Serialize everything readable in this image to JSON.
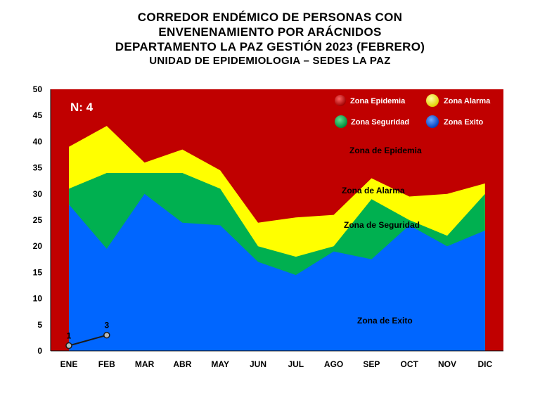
{
  "title_lines": [
    "CORREDOR ENDÉMICO DE PERSONAS CON",
    "ENVENENAMIENTO POR ARÁCNIDOS",
    "DEPARTAMENTO LA PAZ GESTIÓN 2023 (FEBRERO)",
    "UNIDAD DE EPIDEMIOLOGIA – SEDES LA PAZ"
  ],
  "chart_data": {
    "type": "area",
    "categories": [
      "ENE",
      "FEB",
      "MAR",
      "ABR",
      "MAY",
      "JUN",
      "JUL",
      "AGO",
      "SEP",
      "OCT",
      "NOV",
      "DIC"
    ],
    "ylim": [
      0,
      50
    ],
    "yticks": [
      0,
      5,
      10,
      15,
      20,
      25,
      30,
      35,
      40,
      45,
      50
    ],
    "series": [
      {
        "name": "Zona Exito",
        "color": "#0066ff",
        "values": [
          28,
          19.5,
          30,
          24.5,
          24,
          17,
          14.5,
          19,
          17.5,
          24,
          20,
          23
        ]
      },
      {
        "name": "Zona Seguridad",
        "color": "#00b050",
        "values": [
          31,
          34,
          34,
          34,
          31,
          20,
          18,
          20,
          29,
          25,
          22,
          30
        ]
      },
      {
        "name": "Zona Alarma",
        "color": "#ffff00",
        "values": [
          39,
          43,
          36,
          38.5,
          34.5,
          24.5,
          25.5,
          26,
          33,
          29.5,
          30,
          32
        ]
      },
      {
        "name": "Zona Epidemia",
        "color": "#c00000",
        "values": [
          50,
          50,
          50,
          50,
          50,
          50,
          50,
          50,
          50,
          50,
          50,
          50
        ]
      }
    ],
    "observed": {
      "categories": [
        "ENE",
        "FEB"
      ],
      "values": [
        1,
        3
      ],
      "labels": [
        "1",
        "3"
      ]
    },
    "n_label": "N: 4",
    "zone_labels": {
      "epidemia": "Zona de Epidemia",
      "alarma": "Zona de Alarma",
      "seguridad": "Zona de Seguridad",
      "exito": "Zona de Exito"
    },
    "legend_position": "top-right",
    "grid": false
  }
}
